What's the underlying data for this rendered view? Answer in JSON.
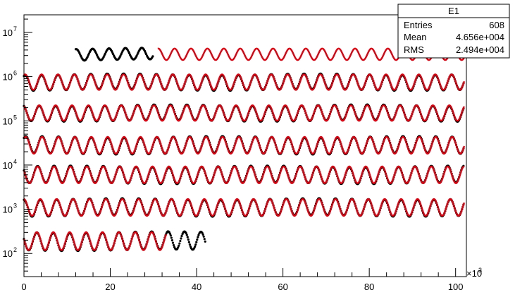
{
  "chart_data": {
    "type": "scatter",
    "log_y": true,
    "xlim": [
      0,
      102.5
    ],
    "ylim": [
      30,
      25000000
    ],
    "x_multiplier_label": "×10",
    "x_multiplier_exp": "3",
    "x_ticks": [
      {
        "value": 0,
        "label": "0"
      },
      {
        "value": 20,
        "label": "20"
      },
      {
        "value": 40,
        "label": "40"
      },
      {
        "value": 60,
        "label": "60"
      },
      {
        "value": 80,
        "label": "80"
      },
      {
        "value": 100,
        "label": "100"
      }
    ],
    "y_ticks": [
      {
        "value": 100,
        "base": "10",
        "exp": "2"
      },
      {
        "value": 1000,
        "base": "10",
        "exp": "3"
      },
      {
        "value": 10000,
        "base": "10",
        "exp": "4"
      },
      {
        "value": 100000,
        "base": "10",
        "exp": "5"
      },
      {
        "value": 1000000,
        "base": "10",
        "exp": "6"
      },
      {
        "value": 10000000,
        "base": "10",
        "exp": "7"
      }
    ],
    "period": 3.8,
    "bands": [
      {
        "center": 3200000,
        "factor": 1.35,
        "phase": 0.4,
        "x_start": 12,
        "x_end": 30,
        "fit_start": 31,
        "fit_end": 102
      },
      {
        "center": 750000,
        "factor": 1.5,
        "phase": 1.1,
        "x_start": 0,
        "x_end": 102,
        "fit_start": 0,
        "fit_end": 102
      },
      {
        "center": 150000,
        "factor": 1.5,
        "phase": 2.0,
        "x_start": 0,
        "x_end": 102,
        "fit_start": 0,
        "fit_end": 102
      },
      {
        "center": 28000,
        "factor": 1.55,
        "phase": 0.9,
        "x_start": 0,
        "x_end": 102,
        "fit_start": 0,
        "fit_end": 102
      },
      {
        "center": 6000,
        "factor": 1.55,
        "phase": 2.6,
        "x_start": 0,
        "x_end": 102,
        "fit_start": 0,
        "fit_end": 102
      },
      {
        "center": 1100,
        "factor": 1.55,
        "phase": 1.6,
        "x_start": 0,
        "x_end": 102,
        "fit_start": 0,
        "fit_end": 102
      },
      {
        "center": 190,
        "factor": 1.6,
        "phase": 2.9,
        "x_start": 0,
        "x_end": 42,
        "fit_start": 0,
        "fit_end": 33
      }
    ],
    "colors": {
      "data": "#000000",
      "fit": "#e0000f",
      "frame": "#000000"
    }
  },
  "stats_box": {
    "title": "E1",
    "rows": [
      {
        "label": "Entries",
        "value": "608"
      },
      {
        "label": "Mean",
        "value": "4.656e+004"
      },
      {
        "label": "RMS",
        "value": "2.494e+004"
      }
    ]
  }
}
